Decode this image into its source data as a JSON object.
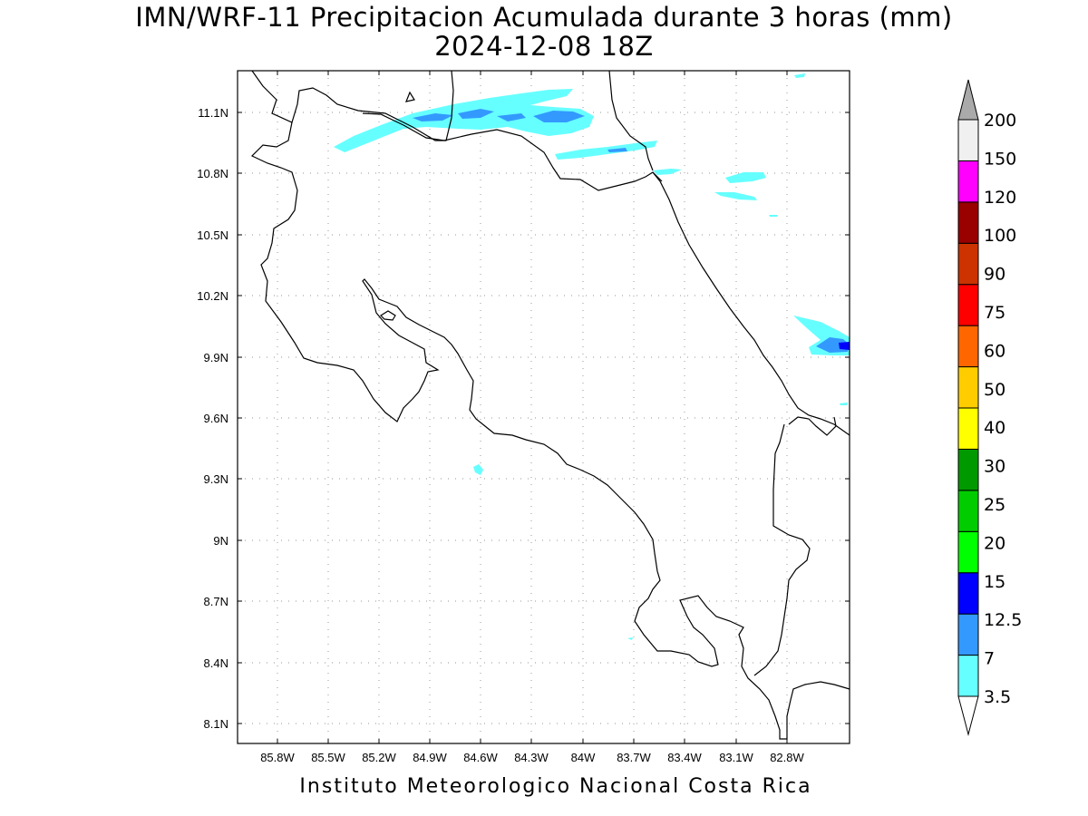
{
  "title_line1": "IMN/WRF-11 Precipitacion Acumulada durante 3 horas (mm)",
  "title_line2": "2024-12-08 18Z",
  "footer": "Instituto Meteorologico Nacional Costa Rica",
  "map": {
    "lon_range": [
      -86.05,
      -82.5
    ],
    "lat_range": [
      8.0,
      11.3
    ],
    "lon_ticks": [
      "85.8W",
      "85.5W",
      "85.2W",
      "84.9W",
      "84.6W",
      "84.3W",
      "84W",
      "83.7W",
      "83.4W",
      "83.1W",
      "82.8W"
    ],
    "lat_ticks": [
      "11.1N",
      "10.8N",
      "10.5N",
      "10.2N",
      "9.9N",
      "9.6N",
      "9.3N",
      "9N",
      "8.7N",
      "8.4N",
      "8.1N"
    ],
    "grid": true
  },
  "colorbar": {
    "levels": [
      "3.5",
      "7",
      "12.5",
      "15",
      "20",
      "25",
      "30",
      "40",
      "50",
      "60",
      "75",
      "90",
      "100",
      "120",
      "150",
      "200"
    ],
    "colors": [
      "#66ffff",
      "#3399ff",
      "#0000ff",
      "#00ff00",
      "#00cc00",
      "#009900",
      "#ffff00",
      "#ffcc00",
      "#ff6600",
      "#ff0000",
      "#cc3300",
      "#990000",
      "#ff00ff",
      "#9933cc",
      "#f0f0f0",
      "#aaaaaa"
    ]
  }
}
